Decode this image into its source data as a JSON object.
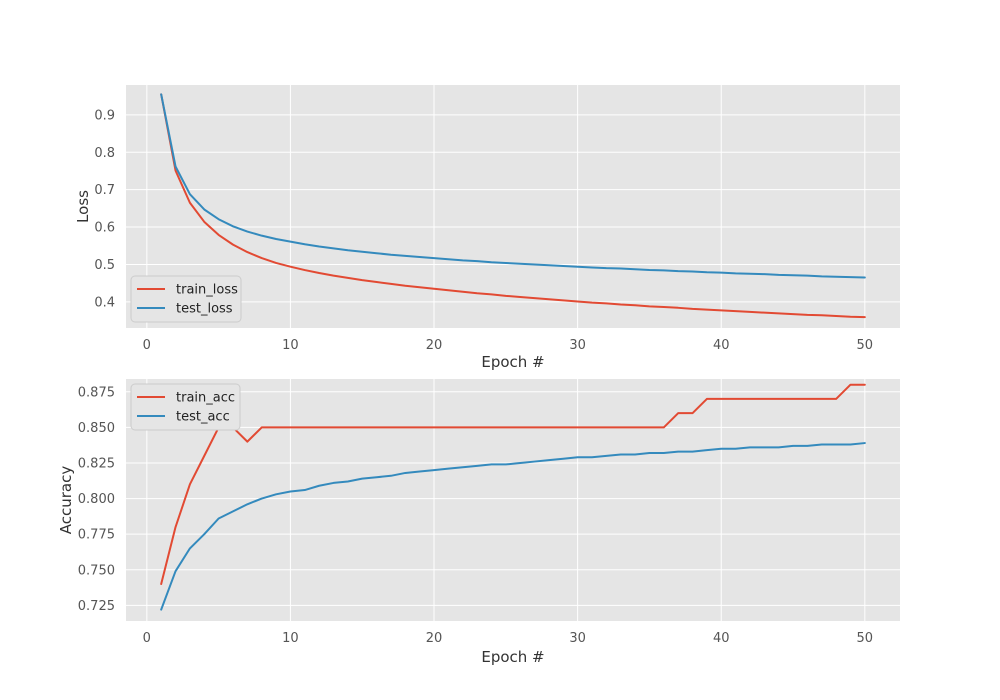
{
  "chart_data": [
    {
      "type": "line",
      "xlabel": "Epoch #",
      "ylabel": "Loss",
      "xlim": [
        -1.45,
        52.45
      ],
      "ylim": [
        0.33,
        0.98
      ],
      "xticks": [
        0,
        10,
        20,
        30,
        40,
        50
      ],
      "yticks": [
        0.4,
        0.5,
        0.6,
        0.7,
        0.8,
        0.9
      ],
      "ytick_decimals": 1,
      "grid": true,
      "legend": "lower-left",
      "x": [
        1,
        2,
        3,
        4,
        5,
        6,
        7,
        8,
        9,
        10,
        11,
        12,
        13,
        14,
        15,
        16,
        17,
        18,
        19,
        20,
        21,
        22,
        23,
        24,
        25,
        26,
        27,
        28,
        29,
        30,
        31,
        32,
        33,
        34,
        35,
        36,
        37,
        38,
        39,
        40,
        41,
        42,
        43,
        44,
        45,
        46,
        47,
        48,
        49,
        50
      ],
      "series": [
        {
          "name": "train_loss",
          "color": "#e24a33",
          "values": [
            0.955,
            0.751,
            0.665,
            0.614,
            0.579,
            0.553,
            0.533,
            0.517,
            0.504,
            0.494,
            0.485,
            0.477,
            0.47,
            0.464,
            0.458,
            0.453,
            0.448,
            0.443,
            0.439,
            0.435,
            0.431,
            0.427,
            0.423,
            0.42,
            0.416,
            0.413,
            0.41,
            0.407,
            0.404,
            0.401,
            0.398,
            0.396,
            0.393,
            0.391,
            0.388,
            0.386,
            0.384,
            0.381,
            0.379,
            0.377,
            0.375,
            0.373,
            0.371,
            0.369,
            0.367,
            0.365,
            0.364,
            0.362,
            0.36,
            0.359
          ]
        },
        {
          "name": "test_loss",
          "color": "#348abd",
          "values": [
            0.955,
            0.762,
            0.688,
            0.647,
            0.621,
            0.602,
            0.588,
            0.577,
            0.568,
            0.561,
            0.554,
            0.548,
            0.543,
            0.538,
            0.534,
            0.53,
            0.526,
            0.523,
            0.52,
            0.517,
            0.514,
            0.511,
            0.509,
            0.506,
            0.504,
            0.502,
            0.5,
            0.498,
            0.496,
            0.494,
            0.492,
            0.49,
            0.489,
            0.487,
            0.485,
            0.484,
            0.482,
            0.481,
            0.479,
            0.478,
            0.476,
            0.475,
            0.474,
            0.472,
            0.471,
            0.47,
            0.468,
            0.467,
            0.466,
            0.465
          ]
        }
      ]
    },
    {
      "type": "line",
      "xlabel": "Epoch #",
      "ylabel": "Accuracy",
      "xlim": [
        -1.45,
        52.45
      ],
      "ylim": [
        0.714,
        0.884
      ],
      "xticks": [
        0,
        10,
        20,
        30,
        40,
        50
      ],
      "yticks": [
        0.725,
        0.75,
        0.775,
        0.8,
        0.825,
        0.85,
        0.875
      ],
      "ytick_decimals": 3,
      "grid": true,
      "legend": "upper-left",
      "x": [
        1,
        2,
        3,
        4,
        5,
        6,
        7,
        8,
        9,
        10,
        11,
        12,
        13,
        14,
        15,
        16,
        17,
        18,
        19,
        20,
        21,
        22,
        23,
        24,
        25,
        26,
        27,
        28,
        29,
        30,
        31,
        32,
        33,
        34,
        35,
        36,
        37,
        38,
        39,
        40,
        41,
        42,
        43,
        44,
        45,
        46,
        47,
        48,
        49,
        50
      ],
      "series": [
        {
          "name": "train_acc",
          "color": "#e24a33",
          "values": [
            0.74,
            0.78,
            0.81,
            0.83,
            0.85,
            0.85,
            0.84,
            0.85,
            0.85,
            0.85,
            0.85,
            0.85,
            0.85,
            0.85,
            0.85,
            0.85,
            0.85,
            0.85,
            0.85,
            0.85,
            0.85,
            0.85,
            0.85,
            0.85,
            0.85,
            0.85,
            0.85,
            0.85,
            0.85,
            0.85,
            0.85,
            0.85,
            0.85,
            0.85,
            0.85,
            0.85,
            0.86,
            0.86,
            0.87,
            0.87,
            0.87,
            0.87,
            0.87,
            0.87,
            0.87,
            0.87,
            0.87,
            0.87,
            0.88,
            0.88
          ]
        },
        {
          "name": "test_acc",
          "color": "#348abd",
          "values": [
            0.722,
            0.749,
            0.765,
            0.775,
            0.786,
            0.791,
            0.796,
            0.8,
            0.803,
            0.805,
            0.806,
            0.809,
            0.811,
            0.812,
            0.814,
            0.815,
            0.816,
            0.818,
            0.819,
            0.82,
            0.821,
            0.822,
            0.823,
            0.824,
            0.824,
            0.825,
            0.826,
            0.827,
            0.828,
            0.829,
            0.829,
            0.83,
            0.831,
            0.831,
            0.832,
            0.832,
            0.833,
            0.833,
            0.834,
            0.835,
            0.835,
            0.836,
            0.836,
            0.836,
            0.837,
            0.837,
            0.838,
            0.838,
            0.838,
            0.839
          ]
        }
      ]
    }
  ]
}
